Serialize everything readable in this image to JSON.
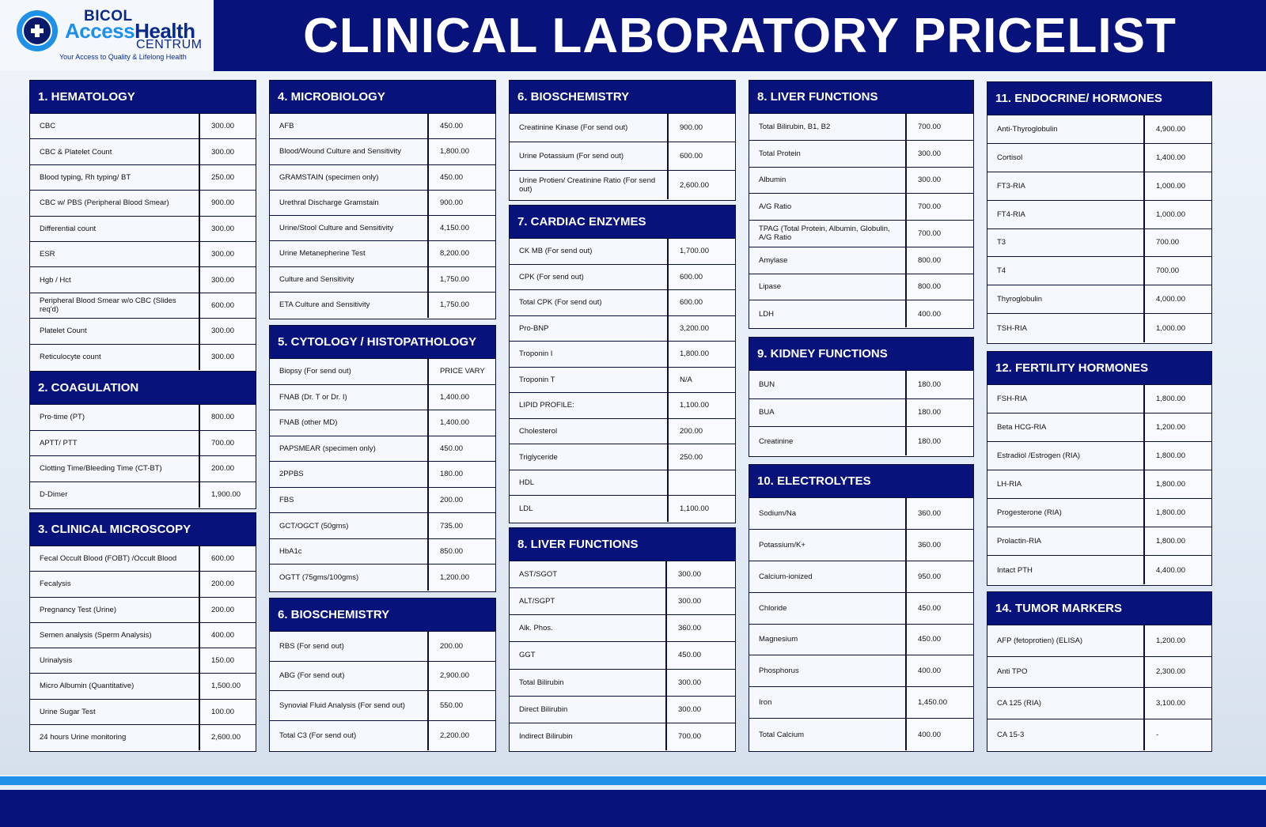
{
  "header": {
    "logo_line1": "BICOL",
    "logo_access": "Access",
    "logo_health": "Health",
    "logo_line3": "CENTRUM",
    "logo_tagline": "Your Access to Quality & Lifelong Health",
    "title": "CLINICAL LABORATORY PRICELIST"
  },
  "colors": {
    "navy": "#07127a",
    "accent_blue": "#1e90e8"
  },
  "sections": [
    {
      "title": "1. HEMATOLOGY",
      "items": [
        {
          "name": "CBC",
          "price": "300.00"
        },
        {
          "name": "CBC  & Platelet Count",
          "price": "300.00"
        },
        {
          "name": "Blood typing, Rh typing/ BT",
          "price": "250.00"
        },
        {
          "name": "CBC w/ PBS (Peripheral Blood Smear)",
          "price": "900.00"
        },
        {
          "name": "Differential count",
          "price": "300.00"
        },
        {
          "name": "ESR",
          "price": "300.00"
        },
        {
          "name": "Hgb / Hct",
          "price": "300.00"
        },
        {
          "name": "Peripheral Blood Smear w/o CBC (Slides req'd)",
          "price": "600.00"
        },
        {
          "name": "Platelet Count",
          "price": "300.00"
        },
        {
          "name": "Reticulocyte count",
          "price": "300.00"
        }
      ]
    },
    {
      "title": "2. COAGULATION",
      "items": [
        {
          "name": "Pro-time (PT)",
          "price": "800.00"
        },
        {
          "name": "APTT/ PTT",
          "price": "700.00"
        },
        {
          "name": "Clotting Time/Bleeding Time (CT-BT)",
          "price": "200.00"
        },
        {
          "name": "D-Dimer",
          "price": "1,900.00"
        }
      ]
    },
    {
      "title": "3. CLINICAL MICROSCOPY",
      "items": [
        {
          "name": "Fecal Occult Blood (FOBT) /Occult Blood",
          "price": "600.00"
        },
        {
          "name": "Fecalysis",
          "price": "200.00"
        },
        {
          "name": "Pregnancy Test (Urine)",
          "price": "200.00"
        },
        {
          "name": "Semen analysis (Sperm Analysis)",
          "price": "400.00"
        },
        {
          "name": "Urinalysis",
          "price": "150.00"
        },
        {
          "name": "Micro Albumin (Quantitative)",
          "price": "1,500.00"
        },
        {
          "name": "Urine Sugar Test",
          "price": "100.00"
        },
        {
          "name": "24 hours Urine monitoring",
          "price": "2,600.00"
        }
      ]
    },
    {
      "title": "4. MICROBIOLOGY",
      "items": [
        {
          "name": "AFB",
          "price": "450.00"
        },
        {
          "name": "Blood/Wound Culture and Sensitivity",
          "price": "1,800.00"
        },
        {
          "name": "GRAMSTAIN (specimen only)",
          "price": "450.00"
        },
        {
          "name": "Urethral Discharge Gramstain",
          "price": "900.00"
        },
        {
          "name": "Urine/Stool Culture and Sensitivity",
          "price": "4,150.00"
        },
        {
          "name": "Urine Metanepherine Test",
          "price": "8,200.00"
        },
        {
          "name": "Culture and Sensitivity",
          "price": "1,750.00"
        },
        {
          "name": "ETA Culture and Sensitivity",
          "price": "1,750.00"
        }
      ]
    },
    {
      "title": "5. CYTOLOGY / HISTOPATHOLOGY",
      "items": [
        {
          "name": "Biopsy (For send out)",
          "price": "PRICE VARY"
        },
        {
          "name": "FNAB (Dr. T or Dr. I)",
          "price": "1,400.00"
        },
        {
          "name": "FNAB (other MD)",
          "price": "1,400.00"
        },
        {
          "name": "PAPSMEAR (specimen only)",
          "price": "450.00"
        },
        {
          "name": "2PPBS",
          "price": "180.00"
        },
        {
          "name": "FBS",
          "price": "200.00"
        },
        {
          "name": "GCT/OGCT (50gms)",
          "price": "735.00"
        },
        {
          "name": "HbA1c",
          "price": "850.00"
        },
        {
          "name": "OGTT (75gms/100gms)",
          "price": "1,200.00"
        }
      ]
    },
    {
      "title": "6. BIOSCHEMISTRY",
      "items": [
        {
          "name": "RBS (For send out)",
          "price": "200.00"
        },
        {
          "name": "ABG (For send out)",
          "price": "2,900.00"
        },
        {
          "name": "Synovial Fluid Analysis (For send out)",
          "price": "550.00"
        },
        {
          "name": "Total C3 (For send out)",
          "price": "2,200.00"
        }
      ]
    },
    {
      "title": "6. BIOSCHEMISTRY",
      "items": [
        {
          "name": "Creatinine Kinase (For send out)",
          "price": "900.00"
        },
        {
          "name": "Urine Potassium (For send out)",
          "price": "600.00"
        },
        {
          "name": "Urine Protien/ Creatinine Ratio  (For send out)",
          "price": "2,600.00"
        }
      ]
    },
    {
      "title": "7. CARDIAC ENZYMES",
      "items": [
        {
          "name": "CK MB (For send out)",
          "price": "1,700.00"
        },
        {
          "name": "CPK (For send out)",
          "price": "600.00"
        },
        {
          "name": "Total CPK (For send out)",
          "price": "600.00"
        },
        {
          "name": "Pro-BNP",
          "price": "3,200.00"
        },
        {
          "name": "Troponin I",
          "price": "1,800.00"
        },
        {
          "name": "Troponin T",
          "price": "N/A"
        },
        {
          "name": "LIPID PROFILE:",
          "price": "1,100.00"
        },
        {
          "name": "Cholesterol",
          "price": "200.00"
        },
        {
          "name": "Triglyceride",
          "price": "250.00"
        },
        {
          "name": "HDL",
          "price": ""
        },
        {
          "name": "LDL",
          "price": "1,100.00"
        }
      ]
    },
    {
      "title": "8. LIVER FUNCTIONS",
      "items": [
        {
          "name": "AST/SGOT",
          "price": "300.00"
        },
        {
          "name": "ALT/SGPT",
          "price": "300.00"
        },
        {
          "name": "Alk. Phos.",
          "price": "360.00"
        },
        {
          "name": "GGT",
          "price": "450.00"
        },
        {
          "name": "Total Bilirubin",
          "price": "300.00"
        },
        {
          "name": "Direct Bilirubin",
          "price": "300.00"
        },
        {
          "name": "Indirect Bilirubin",
          "price": "700.00"
        }
      ]
    },
    {
      "title": "8. LIVER FUNCTIONS",
      "items": [
        {
          "name": "Total Bilirubin, B1, B2",
          "price": "700.00"
        },
        {
          "name": "Total Protein",
          "price": "300.00"
        },
        {
          "name": "Albumin",
          "price": "300.00"
        },
        {
          "name": "A/G Ratio",
          "price": "700.00"
        },
        {
          "name": "TPAG (Total Protein, Albumin, Globulin, A/G Ratio",
          "price": "700.00"
        },
        {
          "name": "Amylase",
          "price": "800.00"
        },
        {
          "name": "Lipase",
          "price": "800.00"
        },
        {
          "name": "LDH",
          "price": "400.00"
        }
      ]
    },
    {
      "title": "9. KIDNEY FUNCTIONS",
      "items": [
        {
          "name": "BUN",
          "price": "180.00"
        },
        {
          "name": "BUA",
          "price": "180.00"
        },
        {
          "name": "Creatinine",
          "price": "180.00"
        }
      ]
    },
    {
      "title": "10. ELECTROLYTES",
      "items": [
        {
          "name": "Sodium/Na",
          "price": "360.00"
        },
        {
          "name": "Potassium/K+",
          "price": "360.00"
        },
        {
          "name": "Calcium-ionized",
          "price": "950.00"
        },
        {
          "name": "Chloride",
          "price": "450.00"
        },
        {
          "name": "Magnesium",
          "price": "450.00"
        },
        {
          "name": "Phosphorus",
          "price": "400.00"
        },
        {
          "name": "Iron",
          "price": "1,450.00"
        },
        {
          "name": "Total Calcium",
          "price": "400.00"
        }
      ]
    },
    {
      "title": "11. ENDOCRINE/ HORMONES",
      "items": [
        {
          "name": "Anti-Thyroglobulin",
          "price": "4,900.00"
        },
        {
          "name": "Cortisol",
          "price": "1,400.00"
        },
        {
          "name": "FT3-RIA",
          "price": "1,000.00"
        },
        {
          "name": "FT4-RIA",
          "price": "1,000.00"
        },
        {
          "name": "T3",
          "price": "700.00"
        },
        {
          "name": "T4",
          "price": "700.00"
        },
        {
          "name": "Thyroglobulin",
          "price": "4,000.00"
        },
        {
          "name": "TSH-RIA",
          "price": "1,000.00"
        }
      ]
    },
    {
      "title": "12. FERTILITY HORMONES",
      "items": [
        {
          "name": "FSH-RIA",
          "price": "1,800.00"
        },
        {
          "name": "Beta HCG-RIA",
          "price": "1,200.00"
        },
        {
          "name": "Estradiol /Estrogen (RIA)",
          "price": "1,800.00"
        },
        {
          "name": "LH-RIA",
          "price": "1,800.00"
        },
        {
          "name": "Progesterone (RIA)",
          "price": "1,800.00"
        },
        {
          "name": "Prolactin-RIA",
          "price": "1,800.00"
        },
        {
          "name": "Intact PTH",
          "price": "4,400.00"
        }
      ]
    },
    {
      "title": "14. TUMOR MARKERS",
      "items": [
        {
          "name": "AFP  (fetoprotien) (ELISA)",
          "price": "1,200.00"
        },
        {
          "name": "Anti TPO",
          "price": "2,300.00"
        },
        {
          "name": "CA 125 (RIA)",
          "price": "3,100.00"
        },
        {
          "name": "CA 15-3",
          "price": "-"
        }
      ]
    }
  ]
}
